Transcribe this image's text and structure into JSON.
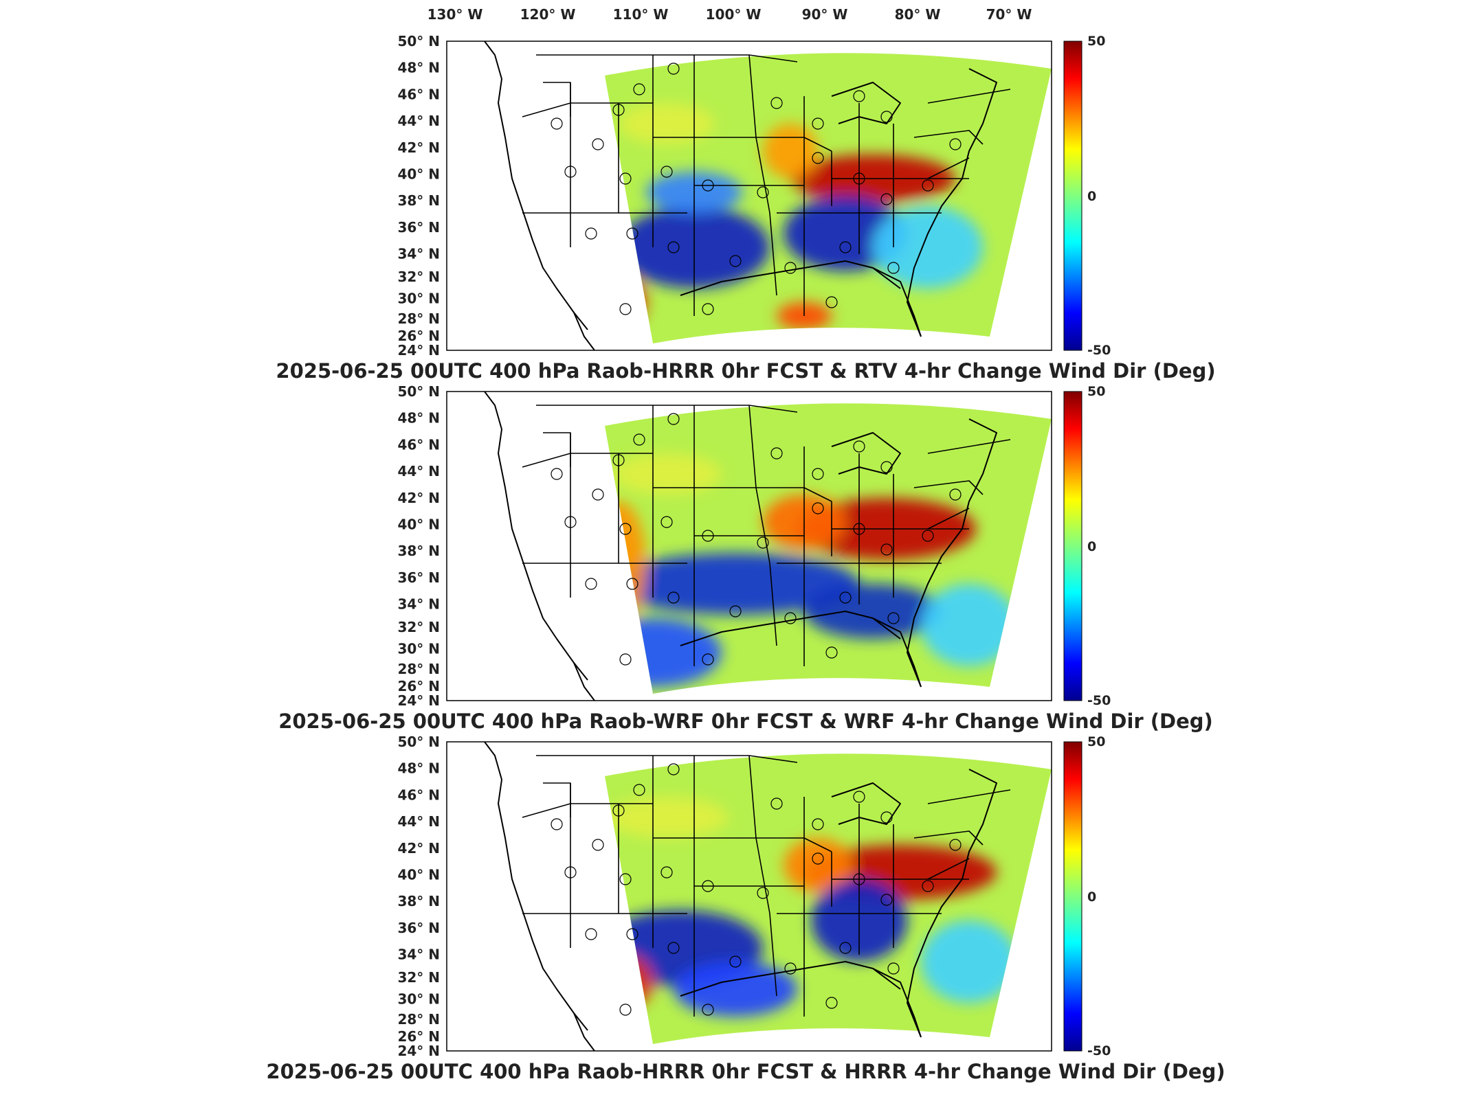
{
  "figure": {
    "top_lon_labels": [
      "130",
      "120",
      "110",
      "100",
      "90",
      "80",
      "70"
    ],
    "lon_unit": "W",
    "lat_labels": [
      "50",
      "48",
      "46",
      "44",
      "42",
      "40",
      "38",
      "36",
      "34",
      "32",
      "30",
      "28",
      "26",
      "24"
    ],
    "lat_unit": "N",
    "degree_symbol": "°",
    "colorbar": {
      "max": "50",
      "mid": "0",
      "min": "-50"
    },
    "panels": [
      {
        "title": "2025-06-25 00UTC 400 hPa Raob-HRRR 0hr FCST & RTV 4-hr Change Wind Dir (Deg)"
      },
      {
        "title": "2025-06-25 00UTC 400 hPa Raob-WRF 0hr FCST & WRF 4-hr Change Wind Dir (Deg)"
      },
      {
        "title": "2025-06-25 00UTC 400 hPa Raob-HRRR 0hr FCST & HRRR 4-hr Change Wind Dir (Deg)"
      }
    ],
    "colors": {
      "warm": "#b00000",
      "cool": "#10109a",
      "neutral": "#b6f04e"
    }
  }
}
